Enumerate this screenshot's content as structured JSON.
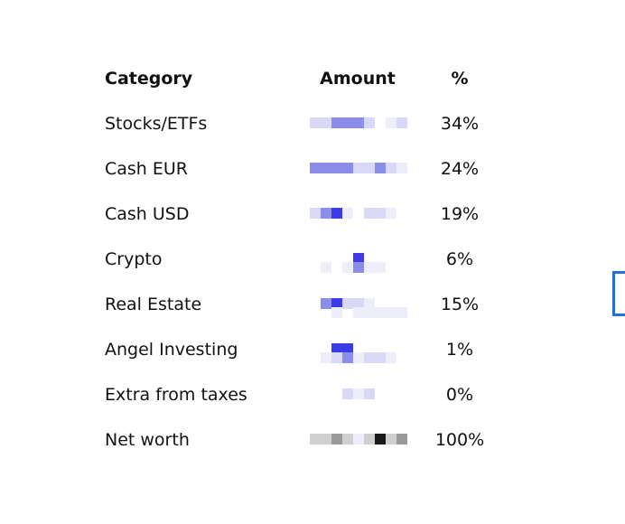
{
  "table": {
    "headers": {
      "category": "Category",
      "amount": "Amount",
      "percent": "%"
    },
    "rows": [
      {
        "category": "Stocks/ETFs",
        "amount_state": "pixelated",
        "percent": "34%"
      },
      {
        "category": "Cash EUR",
        "amount_state": "pixelated",
        "percent": "24%"
      },
      {
        "category": "Cash USD",
        "amount_state": "pixelated",
        "percent": "19%"
      },
      {
        "category": "Crypto",
        "amount_state": "pixelated",
        "percent": "6%"
      },
      {
        "category": "Real Estate",
        "amount_state": "pixelated",
        "percent": "15%"
      },
      {
        "category": "Angel Investing",
        "amount_state": "pixelated",
        "percent": "1%"
      },
      {
        "category": "Extra from taxes",
        "amount_state": "pixelated",
        "percent": "0%"
      },
      {
        "category": "Net worth",
        "amount_state": "pixelated",
        "percent": "100%"
      }
    ]
  },
  "colors": {
    "text": "#111111",
    "accent_blue": "#2a6fd6",
    "redaction_blue_dark": "#3c3ce6",
    "redaction_blue_mid": "#8c8ceb",
    "redaction_blue_light": "#d9d9f7",
    "redaction_gray_dark": "#1a1a1a",
    "redaction_gray_mid": "#9a9a9a",
    "redaction_gray_light": "#d0d0d0"
  }
}
